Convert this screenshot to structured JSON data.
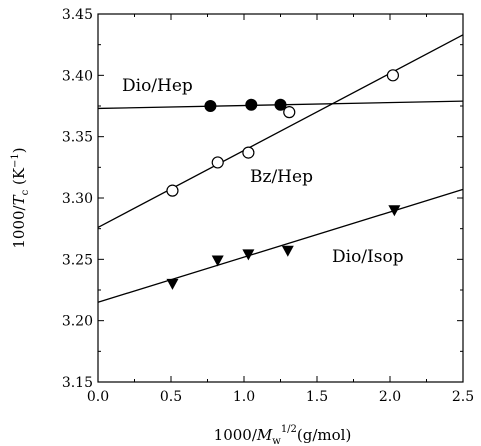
{
  "chart_data": {
    "type": "scatter",
    "title": "",
    "xlabel": "1000/M_w^1/2 (g/mol)",
    "ylabel": "1000/T_c (K^-1)",
    "xlim": [
      0.0,
      2.5
    ],
    "ylim": [
      3.15,
      3.45
    ],
    "x_ticks": [
      "0.0",
      "0.5",
      "1.0",
      "1.5",
      "2.0",
      "2.5"
    ],
    "y_ticks": [
      "3.15",
      "3.20",
      "3.25",
      "3.30",
      "3.35",
      "3.40",
      "3.45"
    ],
    "grid": false,
    "series": [
      {
        "name": "Dio/Hep",
        "marker": "filled-circle",
        "points": [
          [
            0.77,
            3.375
          ],
          [
            1.05,
            3.376
          ],
          [
            1.25,
            3.376
          ]
        ],
        "fit": [
          [
            0.0,
            3.373
          ],
          [
            2.5,
            3.379
          ]
        ]
      },
      {
        "name": "Bz/Hep",
        "marker": "open-circle",
        "points": [
          [
            0.51,
            3.306
          ],
          [
            0.82,
            3.329
          ],
          [
            1.03,
            3.337
          ],
          [
            1.31,
            3.37
          ],
          [
            2.02,
            3.4
          ]
        ],
        "fit": [
          [
            0.0,
            3.276
          ],
          [
            2.5,
            3.433
          ]
        ]
      },
      {
        "name": "Dio/Isop",
        "marker": "filled-down-triangle",
        "points": [
          [
            0.51,
            3.23
          ],
          [
            0.82,
            3.249
          ],
          [
            1.03,
            3.254
          ],
          [
            1.3,
            3.257
          ],
          [
            2.03,
            3.29
          ]
        ],
        "fit": [
          [
            0.0,
            3.215
          ],
          [
            2.5,
            3.307
          ]
        ]
      }
    ],
    "annotations": [
      {
        "text": "Dio/Hep"
      },
      {
        "text": "Bz/Hep"
      },
      {
        "text": "Dio/Isop"
      }
    ],
    "colors": {
      "axis": "#000000",
      "marker": "#000000",
      "background": "#ffffff"
    }
  }
}
